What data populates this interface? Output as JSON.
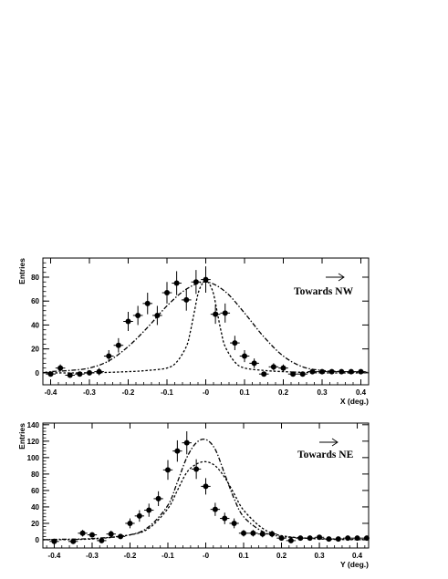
{
  "chart_data": [
    {
      "type": "scatter",
      "title": "",
      "xlabel": "X (deg.)",
      "ylabel": "Entries",
      "xlim": [
        -0.42,
        0.42
      ],
      "ylim": [
        -10,
        96
      ],
      "xticks": [
        -0.4,
        -0.3,
        -0.2,
        -0.1,
        0,
        0.1,
        0.2,
        0.3,
        0.4
      ],
      "xtick_labels": [
        "-0.4",
        "-0.3",
        "-0.2",
        "-0.1",
        "-0",
        "0.1",
        "0.2",
        "0.3",
        "0.4"
      ],
      "yticks": [
        0,
        20,
        40,
        60,
        80
      ],
      "ytick_labels": [
        "0",
        "20",
        "40",
        "60",
        "80"
      ],
      "annotation": "Towards NW",
      "grid": false,
      "series": [
        {
          "style": "points-with-errors",
          "x": [
            -0.4,
            -0.375,
            -0.35,
            -0.325,
            -0.3,
            -0.275,
            -0.25,
            -0.225,
            -0.2,
            -0.175,
            -0.15,
            -0.125,
            -0.1,
            -0.075,
            -0.05,
            -0.025,
            0,
            0.025,
            0.05,
            0.075,
            0.1,
            0.125,
            0.15,
            0.175,
            0.2,
            0.225,
            0.25,
            0.275,
            0.3,
            0.325,
            0.35,
            0.375,
            0.4
          ],
          "y": [
            -1,
            4,
            -2,
            -1,
            0,
            1,
            14,
            23,
            43,
            48,
            58,
            48,
            67,
            75,
            61,
            76,
            78,
            49,
            50,
            25,
            14,
            8,
            -1,
            5,
            4,
            -1,
            -1,
            1,
            1,
            1,
            1,
            1,
            1
          ],
          "err": [
            2,
            3,
            2,
            2,
            2,
            3,
            5,
            6,
            8,
            8,
            9,
            8,
            9,
            10,
            9,
            10,
            11,
            8,
            8,
            6,
            5,
            4,
            2,
            3,
            3,
            2,
            2,
            2,
            2,
            2,
            2,
            2,
            2
          ]
        },
        {
          "style": "dash-dot",
          "x": [
            -0.42,
            -0.4,
            -0.35,
            -0.3,
            -0.25,
            -0.2,
            -0.15,
            -0.1,
            -0.05,
            0,
            0.05,
            0.1,
            0.15,
            0.2,
            0.25,
            0.3,
            0.35,
            0.4,
            0.42
          ],
          "y": [
            0,
            1,
            2,
            4,
            10,
            22,
            38,
            56,
            70,
            76,
            68,
            50,
            30,
            14,
            5,
            2,
            1,
            0.5,
            0.5
          ]
        },
        {
          "style": "dotted",
          "x": [
            -0.42,
            -0.3,
            -0.2,
            -0.15,
            -0.1,
            -0.075,
            -0.05,
            -0.04,
            -0.03,
            -0.02,
            -0.01,
            0,
            0.01,
            0.02,
            0.03,
            0.04,
            0.05,
            0.075,
            0.1,
            0.15,
            0.2,
            0.3,
            0.42
          ],
          "y": [
            0,
            0,
            1,
            2,
            4,
            9,
            22,
            34,
            50,
            66,
            74,
            77,
            74,
            66,
            50,
            34,
            22,
            9,
            4,
            2,
            1,
            0,
            0
          ]
        }
      ]
    },
    {
      "type": "scatter",
      "title": "",
      "xlabel": "Y (deg.)",
      "ylabel": "Entries",
      "xlim": [
        -0.43,
        0.43
      ],
      "ylim": [
        -10,
        142
      ],
      "xticks": [
        -0.4,
        -0.3,
        -0.2,
        -0.1,
        0,
        0.1,
        0.2,
        0.3,
        0.4
      ],
      "xtick_labels": [
        "-0.4",
        "-0.3",
        "-0.2",
        "-0.1",
        "-0",
        "0.1",
        "0.2",
        "0.3",
        "0.4"
      ],
      "yticks": [
        0,
        20,
        40,
        60,
        80,
        100,
        120,
        140
      ],
      "ytick_labels": [
        "0",
        "20",
        "40",
        "60",
        "80",
        "100",
        "120",
        "140"
      ],
      "annotation": "Towards NE",
      "grid": false,
      "series": [
        {
          "style": "points-with-errors",
          "x": [
            -0.4,
            -0.35,
            -0.325,
            -0.3,
            -0.275,
            -0.25,
            -0.225,
            -0.2,
            -0.175,
            -0.15,
            -0.125,
            -0.1,
            -0.075,
            -0.05,
            -0.025,
            0,
            0.025,
            0.05,
            0.075,
            0.1,
            0.125,
            0.15,
            0.175,
            0.2,
            0.225,
            0.25,
            0.275,
            0.3,
            0.325,
            0.35,
            0.375,
            0.4,
            0.425
          ],
          "y": [
            -2,
            -2,
            8,
            6,
            -1,
            7,
            4,
            20,
            29,
            36,
            50,
            85,
            108,
            118,
            86,
            65,
            37,
            26,
            20,
            8,
            8,
            7,
            7,
            2,
            -1,
            2,
            2,
            3,
            1,
            1,
            2,
            2,
            2
          ],
          "err": [
            2,
            2,
            4,
            3,
            2,
            4,
            3,
            6,
            7,
            8,
            9,
            12,
            13,
            14,
            12,
            10,
            8,
            7,
            6,
            4,
            4,
            4,
            4,
            2,
            2,
            2,
            2,
            2,
            2,
            2,
            2,
            2,
            2
          ]
        },
        {
          "style": "dash-dot",
          "x": [
            -0.43,
            -0.4,
            -0.3,
            -0.2,
            -0.15,
            -0.1,
            -0.075,
            -0.05,
            -0.025,
            0,
            0.025,
            0.05,
            0.075,
            0.1,
            0.15,
            0.2,
            0.3,
            0.4,
            0.43
          ],
          "y": [
            0,
            0.5,
            1.5,
            6,
            16,
            42,
            70,
            100,
            118,
            122,
            110,
            80,
            50,
            28,
            10,
            4,
            1.5,
            0.5,
            0.5
          ]
        },
        {
          "style": "dotted",
          "x": [
            -0.43,
            -0.3,
            -0.2,
            -0.15,
            -0.1,
            -0.075,
            -0.05,
            -0.025,
            0,
            0.025,
            0.05,
            0.075,
            0.1,
            0.15,
            0.2,
            0.3,
            0.43
          ],
          "y": [
            0,
            1,
            6,
            14,
            38,
            60,
            82,
            92,
            95,
            90,
            76,
            56,
            36,
            14,
            5,
            1,
            0
          ]
        }
      ]
    }
  ]
}
